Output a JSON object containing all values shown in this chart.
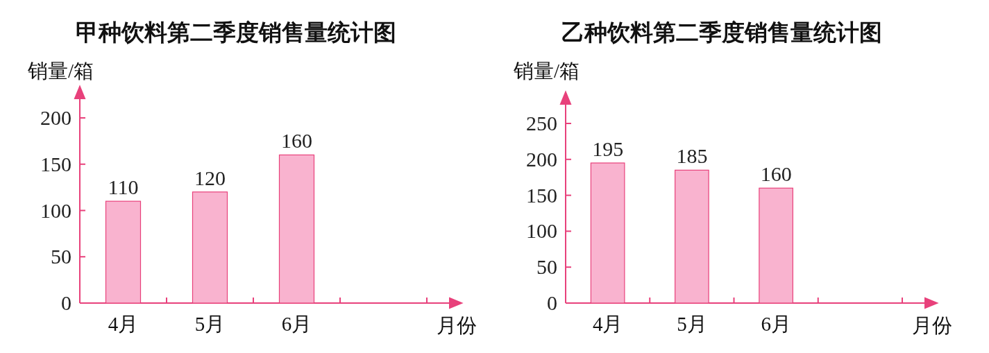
{
  "chart_data": [
    {
      "type": "bar",
      "title": "甲种饮料第二季度销售量统计图",
      "xlabel": "月份",
      "ylabel": "销量/箱",
      "categories": [
        "4月",
        "5月",
        "6月",
        null
      ],
      "values": [
        110,
        120,
        160,
        null
      ],
      "color": "#f9b3cf",
      "ylim": [
        0,
        200
      ],
      "yticks": [
        0,
        50,
        100,
        150,
        200
      ],
      "data_labels": true,
      "grid": false
    },
    {
      "type": "bar",
      "title": "乙种饮料第二季度销售量统计图",
      "xlabel": "月份",
      "ylabel": "销量/箱",
      "categories": [
        "4月",
        "5月",
        "6月",
        null
      ],
      "values": [
        195,
        185,
        160,
        null
      ],
      "color": "#f9b3cf",
      "ylim": [
        0,
        250
      ],
      "yticks": [
        0,
        50,
        100,
        150,
        200,
        250
      ],
      "data_labels": true,
      "grid": false
    }
  ]
}
